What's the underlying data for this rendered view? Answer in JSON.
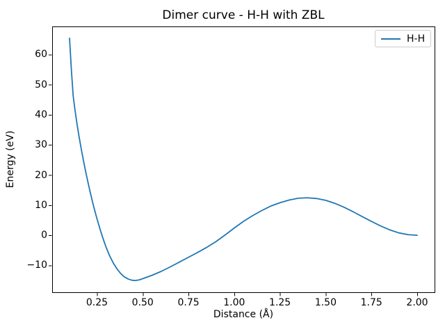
{
  "figure": {
    "title": "Dimer curve - H-H with ZBL",
    "xlabel": "Distance (Å)",
    "ylabel": "Energy (eV)",
    "background_color": "#ffffff",
    "spine_color": "#000000"
  },
  "legend": {
    "position": "upper right",
    "entries": [
      {
        "label": "H-H",
        "color": "#1f77b4"
      }
    ]
  },
  "chart_data": {
    "type": "line",
    "title": "Dimer curve - H-H with ZBL",
    "xlabel": "Distance (Å)",
    "ylabel": "Energy (eV)",
    "grid": false,
    "legend_position": "upper right",
    "xlim": [
      0.005,
      2.095
    ],
    "ylim": [
      -18.9,
      69.3
    ],
    "x_ticks": {
      "values": [
        0.25,
        0.5,
        0.75,
        1.0,
        1.25,
        1.5,
        1.75,
        2.0
      ],
      "labels": [
        "0.25",
        "0.50",
        "0.75",
        "1.00",
        "1.25",
        "1.50",
        "1.75",
        "2.00"
      ]
    },
    "y_ticks": {
      "values": [
        60,
        50,
        40,
        30,
        20,
        10,
        0,
        -10
      ],
      "labels": [
        "60",
        "50",
        "40",
        "30",
        "20",
        "10",
        "0",
        "−10"
      ]
    },
    "series": [
      {
        "name": "H-H",
        "color": "#1f77b4",
        "x": [
          0.1,
          0.11,
          0.12,
          0.13,
          0.14,
          0.15,
          0.16,
          0.17,
          0.18,
          0.19,
          0.2,
          0.21,
          0.22,
          0.23,
          0.24,
          0.25,
          0.26,
          0.27,
          0.28,
          0.29,
          0.3,
          0.32,
          0.34,
          0.36,
          0.38,
          0.4,
          0.42,
          0.44,
          0.46,
          0.48,
          0.5,
          0.55,
          0.6,
          0.65,
          0.7,
          0.75,
          0.8,
          0.85,
          0.9,
          0.95,
          1.0,
          1.05,
          1.1,
          1.15,
          1.2,
          1.25,
          1.3,
          1.35,
          1.4,
          1.45,
          1.5,
          1.55,
          1.6,
          1.65,
          1.7,
          1.75,
          1.8,
          1.85,
          1.9,
          1.95,
          2.0
        ],
        "y": [
          65.4,
          55.0,
          46.2,
          41.5,
          37.3,
          33.5,
          30.0,
          26.7,
          23.6,
          20.6,
          17.8,
          15.1,
          12.5,
          10.0,
          7.7,
          5.5,
          3.4,
          1.4,
          -0.5,
          -2.3,
          -4.0,
          -6.9,
          -9.3,
          -11.2,
          -12.7,
          -13.8,
          -14.5,
          -14.9,
          -15.0,
          -14.8,
          -14.4,
          -13.3,
          -12.0,
          -10.5,
          -8.9,
          -7.3,
          -5.7,
          -4.0,
          -2.1,
          0.1,
          2.4,
          4.6,
          6.5,
          8.2,
          9.7,
          10.8,
          11.7,
          12.3,
          12.45,
          12.2,
          11.6,
          10.6,
          9.3,
          7.8,
          6.2,
          4.6,
          3.1,
          1.8,
          0.8,
          0.2,
          0.0
        ]
      }
    ],
    "annotations": {
      "minimum": {
        "x": 0.45,
        "y": -15.0
      },
      "local_maximum": {
        "x": 1.4,
        "y": 12.45
      }
    }
  }
}
